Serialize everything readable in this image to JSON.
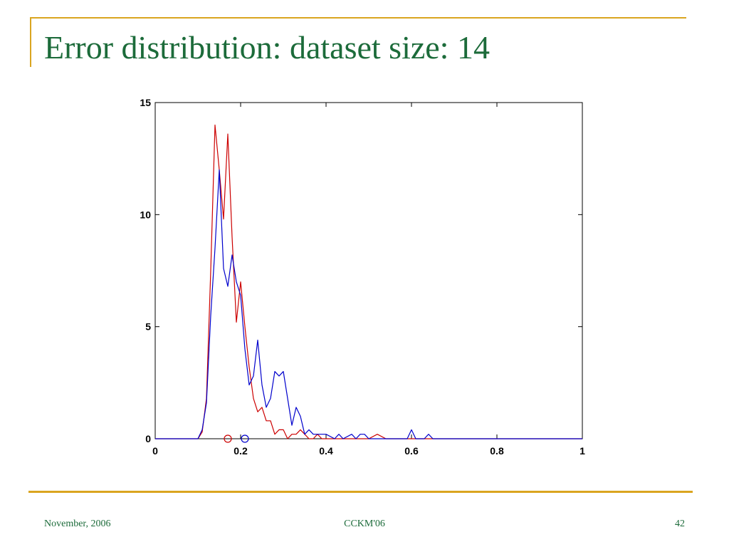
{
  "slide": {
    "title": "Error distribution: dataset size: 14",
    "footer_left": "November, 2006",
    "footer_center": "CCKM'06",
    "footer_right": "42",
    "accent_color": "#DAA520",
    "title_color": "#1C6B3A"
  },
  "chart_data": {
    "type": "line",
    "title": "",
    "xlabel": "",
    "ylabel": "",
    "xlim": [
      0,
      1
    ],
    "ylim": [
      0,
      15
    ],
    "xticks": [
      0,
      0.2,
      0.4,
      0.6,
      0.8,
      1
    ],
    "xtick_labels": [
      "0",
      "0.2",
      "0.4",
      "0.6",
      "0.8",
      "1"
    ],
    "yticks": [
      0,
      5,
      10,
      15
    ],
    "ytick_labels": [
      "0",
      "5",
      "10",
      "15"
    ],
    "grid": false,
    "series": [
      {
        "color": "#cc0000",
        "x": [
          0,
          0.1,
          0.11,
          0.12,
          0.13,
          0.14,
          0.15,
          0.16,
          0.17,
          0.18,
          0.19,
          0.2,
          0.21,
          0.22,
          0.23,
          0.24,
          0.25,
          0.26,
          0.27,
          0.28,
          0.29,
          0.3,
          0.31,
          0.32,
          0.33,
          0.34,
          0.35,
          0.36,
          0.37,
          0.38,
          0.39,
          0.4,
          0.5,
          0.52,
          0.54,
          1.0
        ],
        "y": [
          0,
          0,
          0.3,
          1.8,
          7.5,
          14.0,
          12.0,
          9.8,
          13.6,
          9.0,
          5.2,
          7.0,
          5.0,
          3.2,
          1.8,
          1.2,
          1.4,
          0.8,
          0.8,
          0.2,
          0.4,
          0.4,
          0.0,
          0.2,
          0.2,
          0.4,
          0.2,
          0.0,
          0.0,
          0.2,
          0.0,
          0.0,
          0.0,
          0.2,
          0.0,
          0.0
        ]
      },
      {
        "color": "#0000cc",
        "x": [
          0,
          0.1,
          0.11,
          0.12,
          0.13,
          0.14,
          0.15,
          0.16,
          0.17,
          0.18,
          0.19,
          0.2,
          0.21,
          0.22,
          0.23,
          0.24,
          0.25,
          0.26,
          0.27,
          0.28,
          0.29,
          0.3,
          0.31,
          0.32,
          0.33,
          0.34,
          0.35,
          0.36,
          0.37,
          0.38,
          0.4,
          0.42,
          0.43,
          0.44,
          0.46,
          0.47,
          0.48,
          0.49,
          0.5,
          0.52,
          0.59,
          0.6,
          0.61,
          0.63,
          0.64,
          0.65,
          1.0
        ],
        "y": [
          0,
          0,
          0.4,
          1.6,
          5.5,
          8.5,
          12.0,
          7.6,
          6.8,
          8.2,
          7.0,
          6.4,
          4.0,
          2.4,
          2.8,
          4.4,
          2.4,
          1.4,
          1.8,
          3.0,
          2.8,
          3.0,
          1.8,
          0.6,
          1.4,
          1.0,
          0.2,
          0.4,
          0.2,
          0.2,
          0.2,
          0.0,
          0.2,
          0.0,
          0.2,
          0.0,
          0.2,
          0.2,
          0.0,
          0.0,
          0.0,
          0.4,
          0.0,
          0.0,
          0.2,
          0.0,
          0.0
        ]
      }
    ],
    "markers": [
      {
        "x": 0.17,
        "y": 0,
        "color": "#cc0000",
        "shape": "circle"
      },
      {
        "x": 0.21,
        "y": 0,
        "color": "#0000cc",
        "shape": "circle"
      }
    ]
  }
}
